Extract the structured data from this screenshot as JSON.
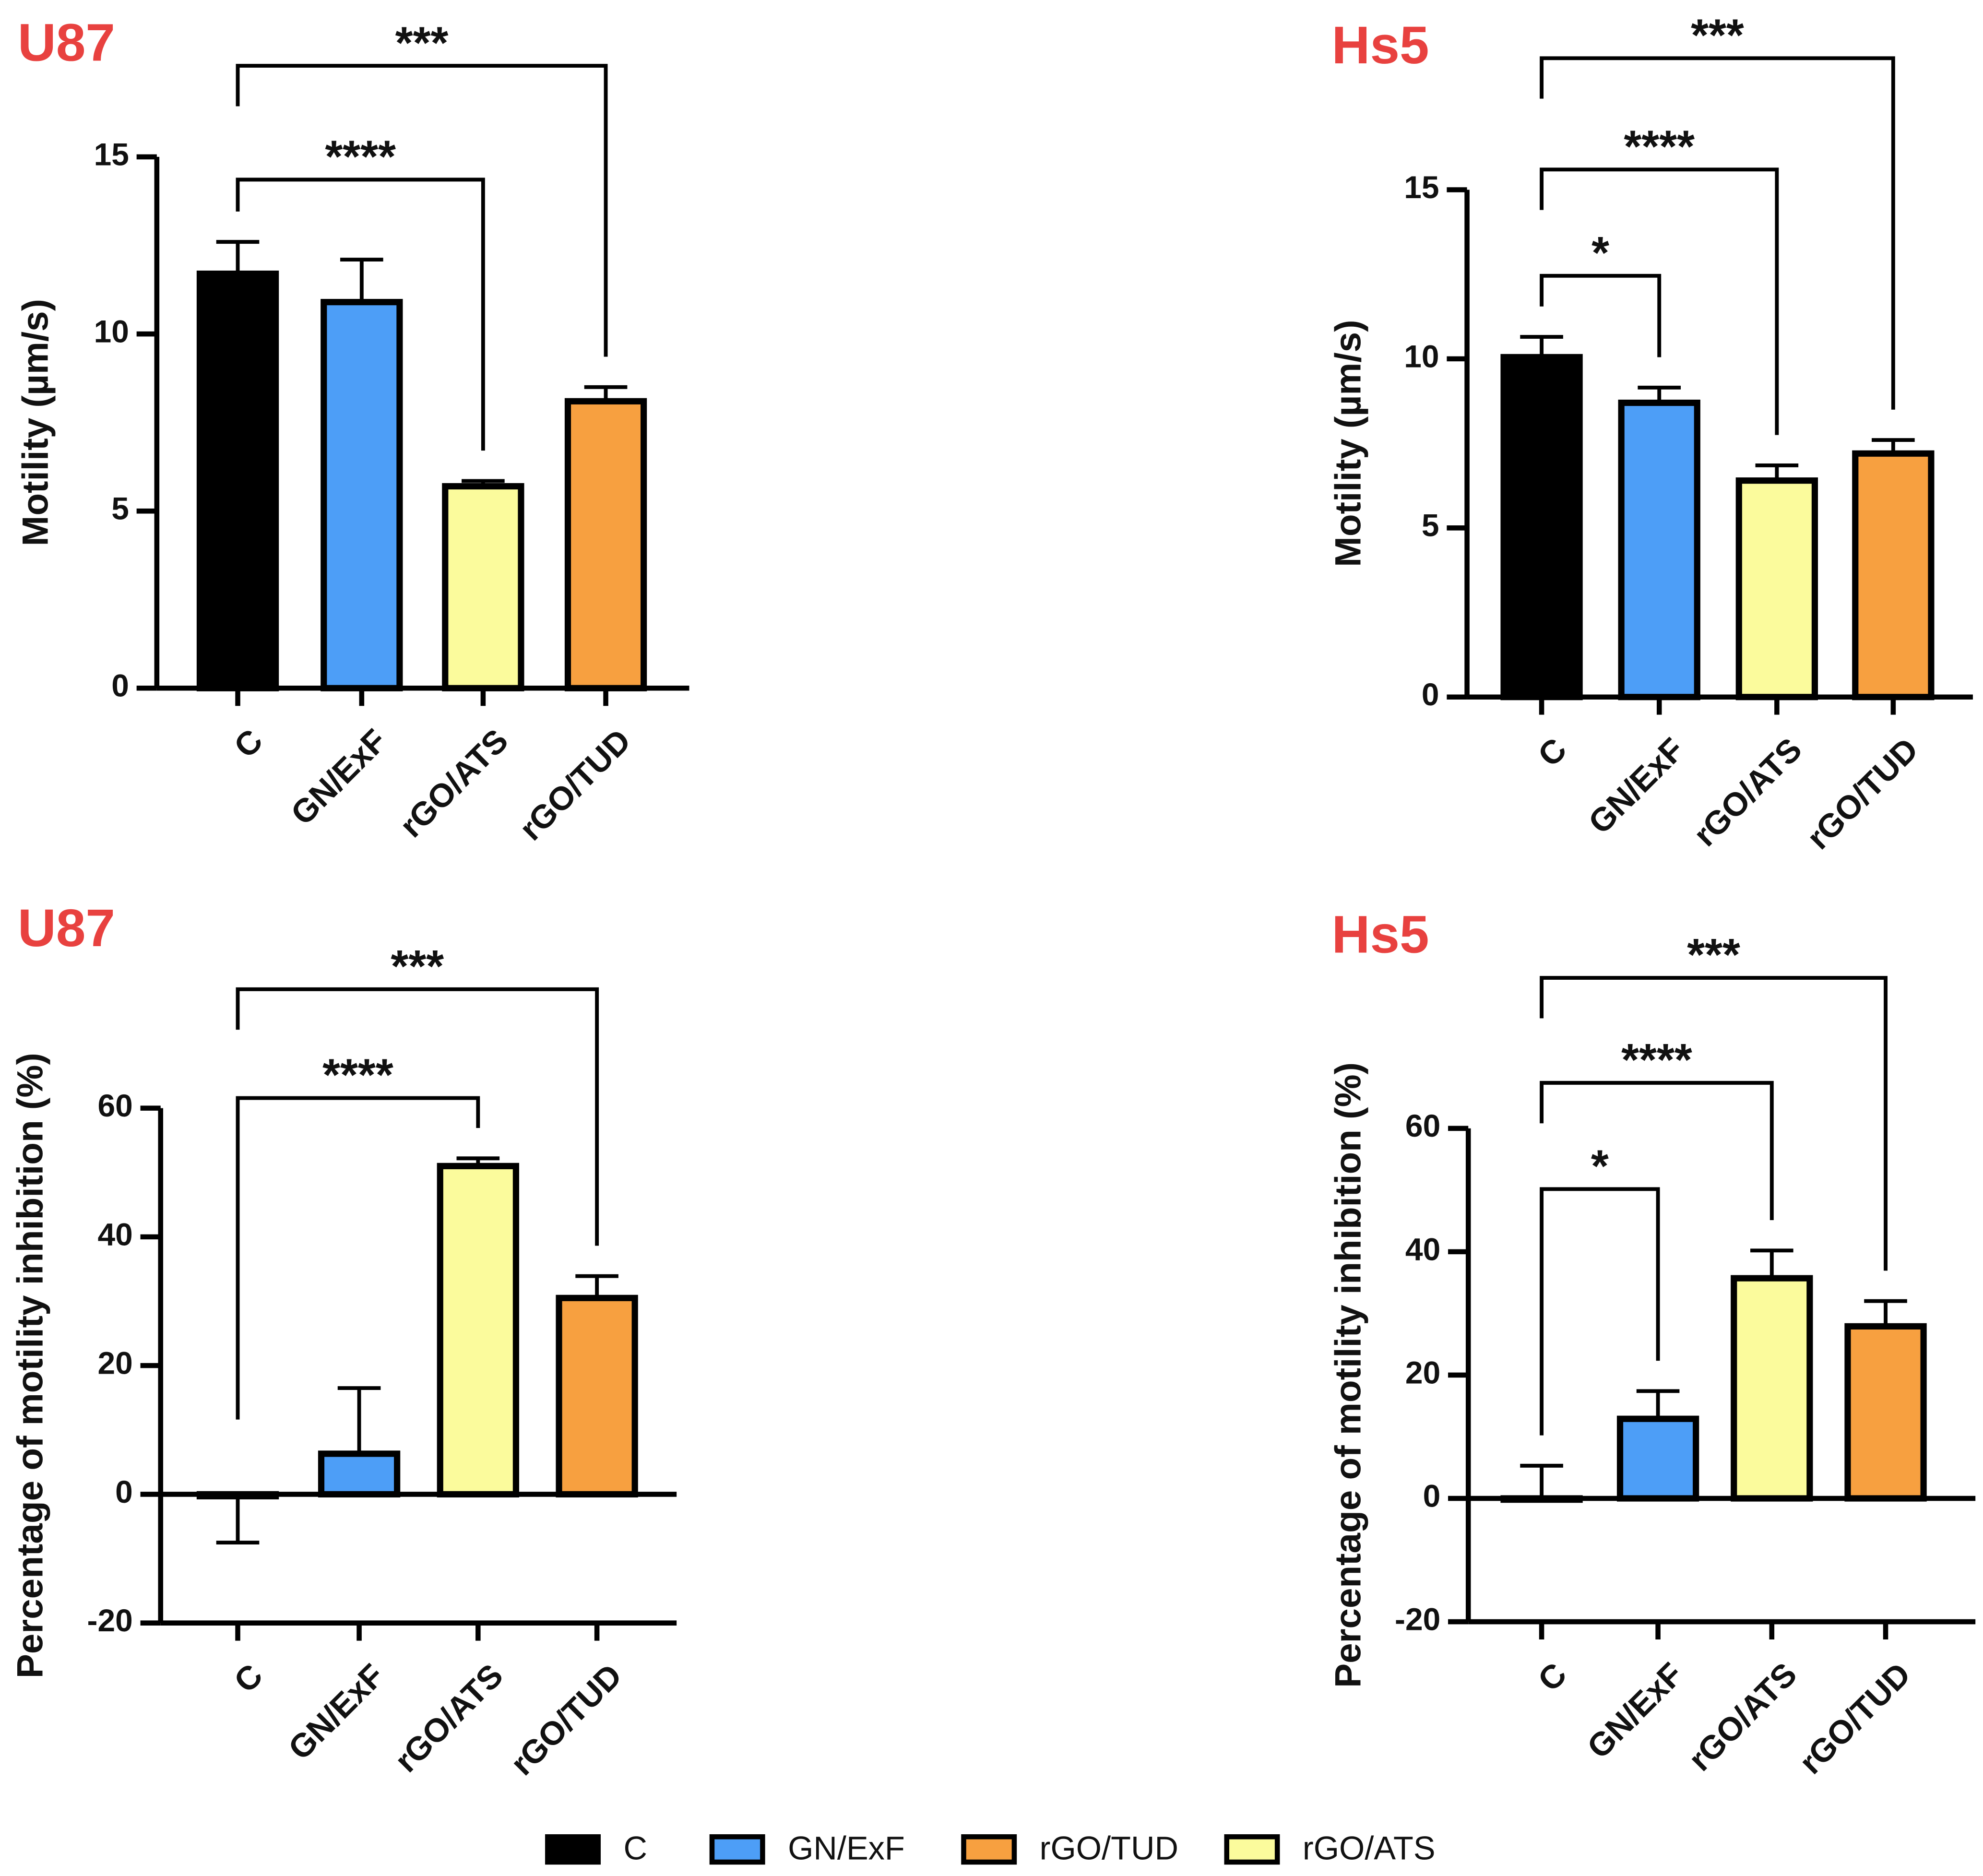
{
  "chart_data": [
    {
      "type": "bar",
      "title": "U87",
      "ylabel": "Motility (µm/s)",
      "categories": [
        "C",
        "GN/ExF",
        "rGO/ATS",
        "rGO/TUD"
      ],
      "values": [
        11.7,
        10.9,
        5.7,
        8.1
      ],
      "errors": [
        0.9,
        1.2,
        0.15,
        0.4
      ],
      "colors": [
        "#000000",
        "#4d9ef7",
        "#fbfb9c",
        "#f7a040"
      ],
      "ylim": [
        0,
        15
      ],
      "yticks": [
        0,
        5,
        10,
        15
      ],
      "comparisons": [
        {
          "from": "C",
          "to": "rGO/TUD",
          "label": "***"
        },
        {
          "from": "C",
          "to": "rGO/ATS",
          "label": "****"
        }
      ]
    },
    {
      "type": "bar",
      "title": "Hs5",
      "ylabel": "Motility (µm/s)",
      "categories": [
        "C",
        "GN/ExF",
        "rGO/ATS",
        "rGO/TUD"
      ],
      "values": [
        10.05,
        8.7,
        6.4,
        7.2
      ],
      "errors": [
        0.6,
        0.45,
        0.45,
        0.4
      ],
      "colors": [
        "#000000",
        "#4d9ef7",
        "#fbfb9c",
        "#f7a040"
      ],
      "ylim": [
        0,
        15
      ],
      "yticks": [
        0,
        5,
        10,
        15
      ],
      "comparisons": [
        {
          "from": "C",
          "to": "rGO/TUD",
          "label": "***"
        },
        {
          "from": "C",
          "to": "rGO/ATS",
          "label": "****"
        },
        {
          "from": "C",
          "to": "GN/ExF",
          "label": "*"
        }
      ]
    },
    {
      "type": "bar",
      "title": "U87",
      "ylabel": "Percentage of motility inhibition (%)",
      "categories": [
        "C",
        "GN/ExF",
        "rGO/ATS",
        "rGO/TUD"
      ],
      "values": [
        -0.3,
        6.3,
        51,
        30.5
      ],
      "errors": [
        7.2,
        10.2,
        1.2,
        3.4
      ],
      "colors": [
        "#000000",
        "#4d9ef7",
        "#fbfb9c",
        "#f7a040"
      ],
      "ylim": [
        -20,
        60
      ],
      "yticks": [
        -20,
        0,
        20,
        40,
        60
      ],
      "comparisons": [
        {
          "from": "C",
          "to": "rGO/TUD",
          "label": "***"
        },
        {
          "from": "C",
          "to": "rGO/ATS",
          "label": "****"
        }
      ]
    },
    {
      "type": "bar",
      "title": "Hs5",
      "ylabel": "Percentage of motility inhibition (%)",
      "categories": [
        "C",
        "GN/ExF",
        "rGO/ATS",
        "rGO/TUD"
      ],
      "values": [
        0,
        12.9,
        35.7,
        27.9
      ],
      "errors": [
        5.3,
        4.5,
        4.5,
        4.1
      ],
      "colors": [
        "#000000",
        "#4d9ef7",
        "#fbfb9c",
        "#f7a040"
      ],
      "ylim": [
        -20,
        60
      ],
      "yticks": [
        -20,
        0,
        20,
        40,
        60
      ],
      "comparisons": [
        {
          "from": "C",
          "to": "rGO/TUD",
          "label": "***"
        },
        {
          "from": "C",
          "to": "rGO/ATS",
          "label": "****"
        },
        {
          "from": "C",
          "to": "GN/ExF",
          "label": "*"
        }
      ]
    }
  ],
  "legend": {
    "entries": [
      {
        "name": "C",
        "color": "#000000"
      },
      {
        "name": "GN/ExF",
        "color": "#4d9ef7"
      },
      {
        "name": "rGO/TUD",
        "color": "#f7a040"
      },
      {
        "name": "rGO/ATS",
        "color": "#fbfb9c"
      }
    ]
  }
}
